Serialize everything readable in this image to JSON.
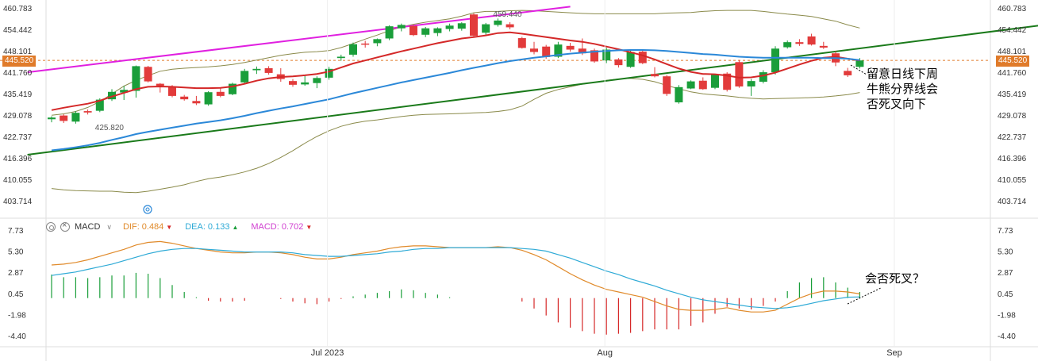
{
  "chart_data": [
    {
      "type": "candlestick",
      "name": "price",
      "y_ticks": [
        "460.783",
        "454.442",
        "448.101",
        "441.760",
        "435.419",
        "429.078",
        "422.737",
        "416.396",
        "410.055",
        "403.714"
      ],
      "y_tick_values": [
        460.783,
        454.442,
        448.101,
        441.76,
        435.419,
        429.078,
        422.737,
        416.396,
        410.055,
        403.714
      ],
      "ylim": [
        400.0,
        461.5
      ],
      "current_price_label": "445.520",
      "current_price": 445.52,
      "high_label": "459.440",
      "low_label": "425.820",
      "x_ticks": [
        {
          "label": "Jul 2023",
          "index": 23
        },
        {
          "label": "Aug",
          "index": 46
        },
        {
          "label": "Sep",
          "index": 70
        }
      ],
      "candles": [
        [
          428.1,
          429.0,
          427.2,
          428.6
        ],
        [
          429.2,
          429.6,
          427.0,
          427.6
        ],
        [
          427.4,
          430.5,
          426.8,
          430.0
        ],
        [
          430.5,
          431.0,
          429.5,
          430.1
        ],
        [
          430.6,
          434.3,
          430.2,
          433.9
        ],
        [
          434.0,
          437.0,
          433.5,
          436.2
        ],
        [
          436.0,
          438.0,
          433.8,
          436.8
        ],
        [
          436.5,
          444.0,
          434.5,
          443.8
        ],
        [
          443.6,
          443.9,
          439.0,
          439.3
        ],
        [
          438.6,
          438.8,
          436.0,
          438.0
        ],
        [
          437.8,
          438.2,
          434.6,
          435.0
        ],
        [
          434.8,
          435.3,
          433.6,
          434.0
        ],
        [
          433.5,
          435.0,
          432.3,
          432.8
        ],
        [
          432.5,
          436.4,
          432.1,
          436.1
        ],
        [
          436.2,
          437.5,
          434.6,
          435.0
        ],
        [
          435.5,
          438.9,
          435.2,
          438.6
        ],
        [
          439.0,
          443.0,
          438.5,
          442.4
        ],
        [
          442.6,
          443.7,
          441.5,
          443.0
        ],
        [
          443.2,
          443.8,
          441.3,
          441.8
        ],
        [
          441.4,
          443.2,
          439.2,
          440.0
        ],
        [
          439.4,
          440.0,
          437.7,
          438.3
        ],
        [
          438.4,
          441.0,
          438.0,
          439.0
        ],
        [
          438.8,
          440.8,
          437.3,
          440.3
        ],
        [
          440.4,
          443.6,
          439.8,
          443.0
        ],
        [
          446.2,
          447.2,
          445.4,
          446.6
        ],
        [
          447.2,
          450.8,
          446.6,
          450.3
        ],
        [
          450.5,
          451.3,
          449.3,
          450.2
        ],
        [
          450.6,
          452.0,
          449.7,
          451.8
        ],
        [
          452.0,
          455.9,
          451.5,
          455.6
        ],
        [
          455.0,
          456.4,
          454.1,
          456.0
        ],
        [
          455.7,
          456.0,
          452.7,
          453.0
        ],
        [
          453.1,
          455.4,
          452.4,
          455.0
        ],
        [
          453.6,
          455.3,
          452.7,
          455.0
        ],
        [
          454.8,
          456.4,
          454.1,
          455.8
        ],
        [
          454.9,
          456.8,
          454.3,
          456.5
        ],
        [
          459.1,
          459.44,
          452.5,
          452.8
        ],
        [
          453.7,
          456.6,
          452.7,
          456.2
        ],
        [
          456.0,
          457.9,
          455.5,
          457.3
        ],
        [
          456.2,
          456.8,
          454.7,
          455.3
        ],
        [
          452.1,
          452.5,
          449.0,
          449.2
        ],
        [
          449.0,
          451.0,
          447.3,
          448.0
        ],
        [
          449.6,
          450.1,
          446.0,
          446.5
        ],
        [
          446.6,
          451.0,
          446.2,
          450.2
        ],
        [
          449.8,
          450.7,
          448.1,
          448.7
        ],
        [
          449.0,
          452.0,
          447.1,
          447.6
        ],
        [
          448.5,
          449.0,
          444.8,
          445.2
        ],
        [
          445.5,
          449.3,
          444.7,
          448.7
        ],
        [
          445.8,
          446.2,
          443.4,
          444.1
        ],
        [
          443.6,
          448.8,
          443.3,
          448.0
        ],
        [
          448.1,
          448.5,
          444.4,
          444.7
        ],
        [
          441.5,
          443.5,
          440.5,
          440.8
        ],
        [
          440.8,
          441.2,
          435.0,
          435.6
        ],
        [
          433.1,
          438.2,
          432.7,
          437.6
        ],
        [
          437.2,
          439.6,
          437.0,
          439.3
        ],
        [
          439.5,
          440.5,
          436.8,
          437.0
        ],
        [
          437.4,
          441.5,
          437.0,
          441.2
        ],
        [
          441.6,
          442.0,
          436.3,
          436.8
        ],
        [
          445.0,
          445.6,
          437.4,
          437.8
        ],
        [
          437.8,
          440.0,
          435.0,
          439.4
        ],
        [
          439.2,
          442.6,
          438.7,
          442.0
        ],
        [
          442.0,
          449.7,
          441.3,
          449.0
        ],
        [
          449.4,
          451.4,
          449.0,
          450.9
        ],
        [
          450.9,
          451.8,
          449.8,
          450.4
        ],
        [
          452.6,
          453.4,
          449.9,
          450.2
        ],
        [
          449.8,
          451.0,
          448.9,
          449.3
        ],
        [
          447.6,
          448.2,
          443.8,
          444.9
        ],
        [
          442.4,
          443.3,
          440.6,
          441.1
        ],
        [
          443.6,
          446.2,
          443.1,
          445.5
        ]
      ],
      "series": [
        {
          "color": "#d42828",
          "values": [
            430.8,
            431.5,
            432.1,
            432.7,
            433.6,
            434.8,
            435.9,
            437.0,
            437.7,
            437.8,
            437.7,
            437.5,
            437.3,
            437.3,
            437.4,
            437.8,
            438.6,
            439.5,
            440.2,
            440.6,
            440.8,
            441.1,
            441.5,
            442.2,
            443.4,
            444.6,
            445.5,
            446.4,
            447.3,
            448.2,
            449.0,
            449.8,
            450.6,
            451.3,
            452.0,
            452.4,
            452.9,
            453.6,
            453.8,
            453.4,
            452.9,
            452.4,
            451.9,
            451.4,
            451.0,
            450.4,
            449.6,
            448.8,
            447.9,
            447.0,
            445.8,
            444.4,
            443.1,
            442.1,
            441.5,
            441.4,
            441.0,
            440.4,
            440.5,
            441.0,
            441.9,
            443.1,
            444.3,
            445.4,
            446.3,
            446.6,
            446.0,
            445.5
          ]
        },
        {
          "color": "#2b88d8",
          "values": [
            418.9,
            419.3,
            419.8,
            420.4,
            421.1,
            422.0,
            422.8,
            423.7,
            424.4,
            425.0,
            425.6,
            426.2,
            426.8,
            427.3,
            427.8,
            428.4,
            429.1,
            429.9,
            430.6,
            431.3,
            431.9,
            432.6,
            433.3,
            434.0,
            434.9,
            435.8,
            436.6,
            437.4,
            438.2,
            439.0,
            439.7,
            440.4,
            441.1,
            441.8,
            442.6,
            443.3,
            444.0,
            444.7,
            445.3,
            445.8,
            446.3,
            446.7,
            447.1,
            447.5,
            447.8,
            448.1,
            448.3,
            448.5,
            448.6,
            448.6,
            448.5,
            448.3,
            448.0,
            447.7,
            447.4,
            447.2,
            446.9,
            446.6,
            446.4,
            446.3,
            446.3,
            446.3,
            446.3,
            446.3,
            446.2,
            446.2,
            446.0,
            445.6
          ]
        },
        {
          "color": "#8a8a4a",
          "values": [
            429.3,
            429.7,
            430.4,
            431.6,
            433.3,
            435.6,
            437.9,
            439.6,
            441.0,
            442.3,
            442.9,
            443.2,
            443.4,
            443.6,
            443.9,
            444.3,
            444.9,
            445.6,
            446.3,
            447.0,
            447.5,
            447.9,
            448.1,
            448.4,
            449.3,
            450.5,
            451.8,
            453.0,
            454.3,
            455.4,
            456.2,
            456.8,
            457.3,
            457.8,
            458.6,
            459.6,
            460.0,
            460.0,
            460.2,
            460.3,
            460.2,
            460.0,
            459.8,
            459.6,
            459.4,
            459.3,
            459.3,
            459.3,
            459.3,
            459.3,
            459.3,
            459.5,
            459.6,
            459.7,
            460.0,
            460.2,
            460.3,
            460.3,
            460.3,
            460.0,
            459.6,
            459.2,
            458.9,
            458.5,
            457.8,
            457.1,
            456.0,
            455.1
          ]
        },
        {
          "color": "#8a8a4a",
          "values": [
            407.6,
            407.2,
            407.0,
            406.9,
            406.8,
            406.8,
            406.5,
            406.4,
            406.8,
            407.4,
            408.0,
            408.7,
            409.7,
            410.5,
            411.0,
            411.7,
            412.5,
            413.6,
            415.0,
            416.8,
            418.8,
            421.0,
            423.0,
            424.7,
            426.0,
            426.9,
            427.5,
            427.9,
            428.4,
            428.9,
            429.3,
            429.5,
            429.6,
            429.7,
            429.8,
            430.0,
            430.1,
            430.4,
            430.9,
            432.0,
            434.0,
            435.8,
            436.9,
            437.7,
            438.5,
            439.0,
            439.6,
            440.0,
            440.2,
            439.9,
            439.2,
            438.1,
            437.1,
            436.2,
            435.6,
            435.3,
            435.0,
            434.6,
            434.3,
            434.1,
            434.2,
            434.3,
            434.4,
            434.5,
            434.7,
            435.0,
            435.4,
            436.0
          ]
        }
      ],
      "trendlines": [
        {
          "color": "#e020e0",
          "from": [
            -2,
            442.0
          ],
          "to": [
            43,
            461.4
          ]
        },
        {
          "color": "#1a7a1a",
          "from": [
            -2,
            417.6
          ],
          "to": [
            84,
            456.8
          ]
        }
      ],
      "annotation": [
        "留意日线下周",
        "牛熊分界线会",
        "否死叉向下"
      ]
    },
    {
      "type": "bar",
      "name": "MACD",
      "legend": {
        "title": "MACD",
        "dif_label": "DIF:",
        "dif_value": "0.484",
        "dea_label": "DEA:",
        "dea_value": "0.133",
        "macd_label": "MACD:",
        "macd_value": "0.702"
      },
      "y_ticks": [
        "7.73",
        "5.30",
        "2.87",
        "0.45",
        "-1.98",
        "-4.40"
      ],
      "y_tick_values": [
        7.73,
        5.3,
        2.87,
        0.45,
        -1.98,
        -4.4
      ],
      "ylim": [
        -5.5,
        8.0
      ],
      "colors": {
        "dif": "#e08a2a",
        "dea": "#2eaad6",
        "macd_pos": "#1a9e3a",
        "macd_neg": "#d62828"
      },
      "dif": [
        3.8,
        3.9,
        4.1,
        4.4,
        4.8,
        5.2,
        5.6,
        6.1,
        6.4,
        6.5,
        6.3,
        6.0,
        5.7,
        5.5,
        5.3,
        5.2,
        5.2,
        5.3,
        5.3,
        5.2,
        5.0,
        4.7,
        4.5,
        4.5,
        4.7,
        5.0,
        5.2,
        5.4,
        5.7,
        5.9,
        6.0,
        6.0,
        5.9,
        5.8,
        5.8,
        5.8,
        5.8,
        5.9,
        5.8,
        5.5,
        5.0,
        4.4,
        3.6,
        2.8,
        2.1,
        1.5,
        1.0,
        0.7,
        0.4,
        0.1,
        -0.4,
        -0.9,
        -1.3,
        -1.4,
        -1.4,
        -1.3,
        -1.1,
        -1.4,
        -1.6,
        -1.6,
        -1.4,
        -0.7,
        0.0,
        0.5,
        0.8,
        0.8,
        0.7,
        0.48
      ],
      "dea": [
        2.6,
        2.8,
        3.0,
        3.3,
        3.6,
        3.9,
        4.3,
        4.7,
        5.1,
        5.4,
        5.6,
        5.7,
        5.7,
        5.6,
        5.5,
        5.4,
        5.3,
        5.3,
        5.3,
        5.3,
        5.2,
        5.0,
        4.9,
        4.8,
        4.8,
        4.9,
        5.0,
        5.1,
        5.3,
        5.4,
        5.6,
        5.7,
        5.7,
        5.8,
        5.8,
        5.8,
        5.8,
        5.8,
        5.8,
        5.7,
        5.6,
        5.4,
        5.0,
        4.6,
        4.1,
        3.6,
        3.1,
        2.7,
        2.2,
        1.8,
        1.4,
        0.9,
        0.5,
        0.1,
        -0.2,
        -0.4,
        -0.6,
        -0.8,
        -1.0,
        -1.1,
        -1.2,
        -1.1,
        -0.9,
        -0.6,
        -0.3,
        -0.1,
        0.1,
        0.133
      ],
      "macd": [
        2.7,
        2.4,
        2.4,
        2.3,
        2.4,
        2.6,
        2.6,
        2.9,
        2.8,
        2.3,
        1.5,
        0.7,
        0.1,
        -0.3,
        -0.4,
        -0.4,
        -0.3,
        0.0,
        0.0,
        -0.1,
        -0.4,
        -0.6,
        -0.7,
        -0.4,
        -0.1,
        0.2,
        0.4,
        0.6,
        0.8,
        1.0,
        0.9,
        0.6,
        0.4,
        0.1,
        0.0,
        0.0,
        0.0,
        0.0,
        0.0,
        -0.4,
        -1.2,
        -2.0,
        -2.8,
        -3.4,
        -3.8,
        -4.1,
        -4.2,
        -4.1,
        -4.0,
        -3.8,
        -3.6,
        -3.6,
        -3.6,
        -3.2,
        -2.8,
        -1.8,
        -1.0,
        -1.2,
        -1.3,
        -0.9,
        -0.4,
        0.8,
        1.8,
        2.3,
        2.4,
        1.8,
        1.2,
        0.702
      ],
      "annotation": "会否死叉？"
    }
  ]
}
